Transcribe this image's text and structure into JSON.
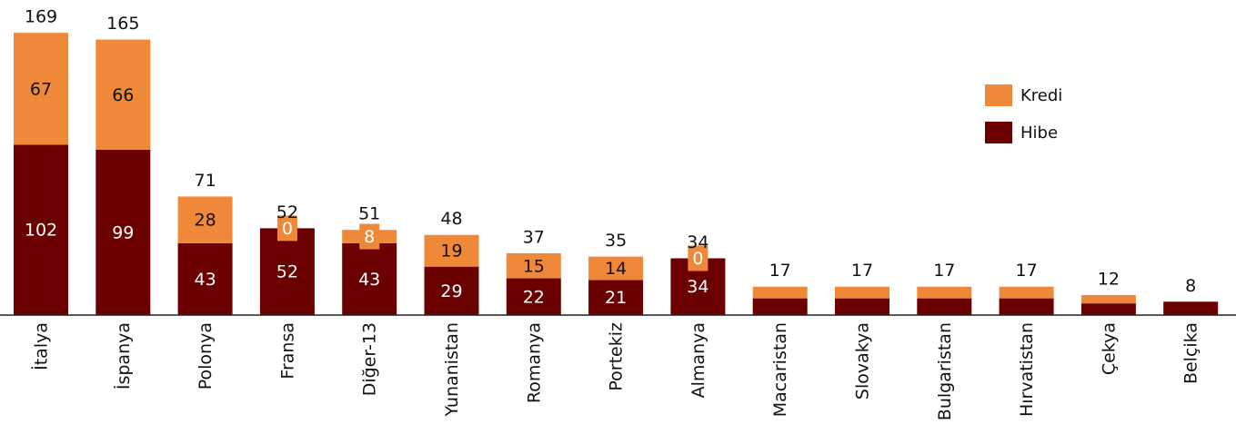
{
  "chart_data": {
    "type": "stacked-bar",
    "categories": [
      "İtalya",
      "İspanya",
      "Polonya",
      "Fransa",
      "Diğer-13",
      "Yunanistan",
      "Romanya",
      "Portekiz",
      "Almanya",
      "Macaristan",
      "Slovakya",
      "Bulgaristan",
      "Hırvatistan",
      "Çekya",
      "Belçika"
    ],
    "series": [
      {
        "name": "Hibe",
        "color": "#6b0000",
        "values": [
          102,
          99,
          43,
          52,
          43,
          29,
          22,
          21,
          34,
          10,
          10,
          10,
          10,
          7,
          8
        ],
        "value_labels": [
          "102",
          "99",
          "43",
          "52",
          "43",
          "29",
          "22",
          "21",
          "34",
          null,
          null,
          null,
          null,
          null,
          null
        ]
      },
      {
        "name": "Kredi",
        "color": "#f0883a",
        "values": [
          67,
          66,
          28,
          0,
          8,
          19,
          15,
          14,
          0,
          7,
          7,
          7,
          7,
          5,
          0
        ],
        "value_labels": [
          "67",
          "66",
          "28",
          "0",
          "8",
          "19",
          "15",
          "14",
          "0",
          null,
          null,
          null,
          null,
          null,
          null
        ]
      }
    ],
    "totals": [
      169,
      165,
      71,
      52,
      51,
      48,
      37,
      35,
      34,
      17,
      17,
      17,
      17,
      12,
      8
    ],
    "ylim": [
      0,
      180
    ],
    "legend": "upper-right"
  }
}
